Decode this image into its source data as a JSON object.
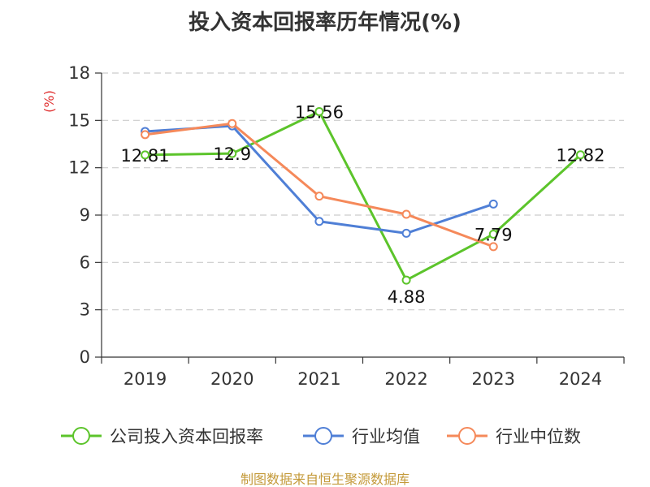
{
  "chart_data": {
    "type": "line",
    "title": "投入资本回报率历年情况(%)",
    "ylabel": "(%)",
    "xlabel": "",
    "ylim": [
      0,
      18
    ],
    "yticks": [
      0,
      3,
      6,
      9,
      12,
      15,
      18
    ],
    "categories": [
      "2019",
      "2020",
      "2021",
      "2022",
      "2023",
      "2024"
    ],
    "grid": true,
    "legend_position": "bottom",
    "series": [
      {
        "name": "公司投入资本回报率",
        "color": "#5cc42b",
        "values": [
          12.81,
          12.9,
          15.56,
          4.88,
          7.79,
          12.82
        ],
        "labels": [
          "12.81",
          "12.9",
          "15.56",
          "4.88",
          "7.79",
          "12.82"
        ]
      },
      {
        "name": "行业均值",
        "color": "#4f7fd6",
        "values": [
          14.3,
          14.65,
          8.6,
          7.85,
          9.7,
          null
        ]
      },
      {
        "name": "行业中位数",
        "color": "#f5895a",
        "values": [
          14.1,
          14.8,
          10.2,
          9.05,
          7.0,
          null
        ]
      }
    ]
  },
  "source": "制图数据来自恒生聚源数据库",
  "colors": {
    "ylabel": "#e03030",
    "source": "#c49a3a",
    "axis": "#333333",
    "grid": "#cccccc"
  }
}
